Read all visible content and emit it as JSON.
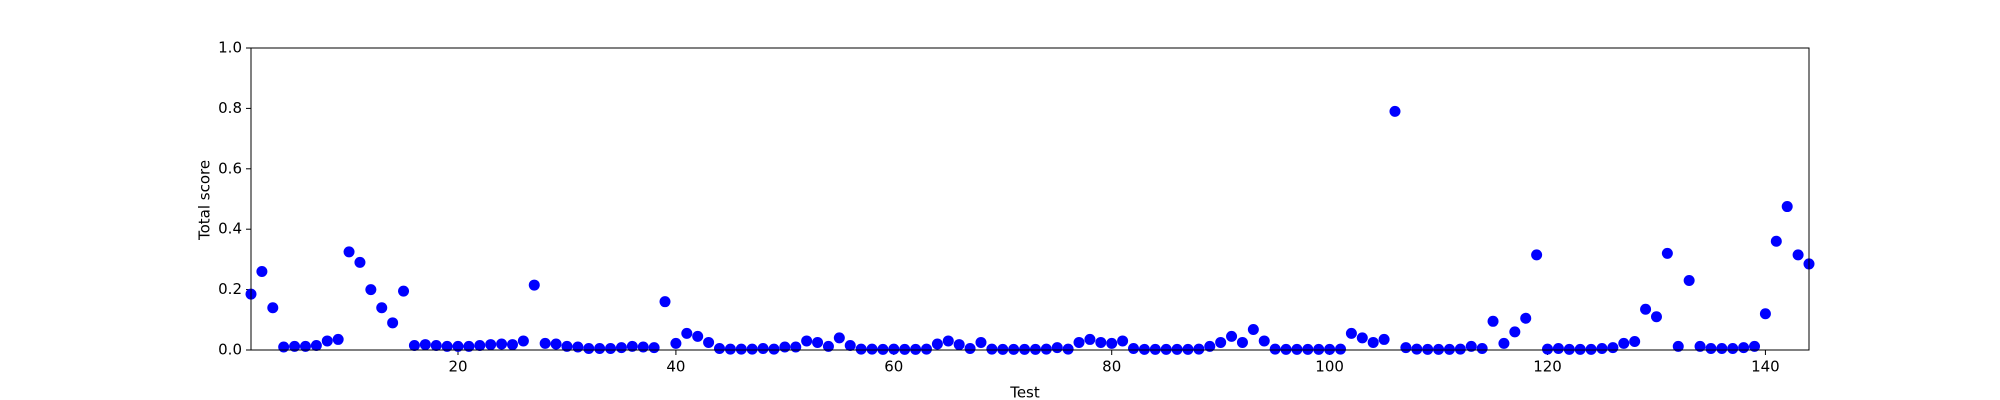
{
  "chart_data": {
    "type": "scatter",
    "xlabel": "Test",
    "ylabel": "Total score",
    "color": "#0000ff",
    "grid": false,
    "x": [
      1,
      2,
      3,
      4,
      5,
      6,
      7,
      8,
      9,
      10,
      11,
      12,
      13,
      14,
      15,
      16,
      17,
      18,
      19,
      20,
      21,
      22,
      23,
      24,
      25,
      26,
      27,
      28,
      29,
      30,
      31,
      32,
      33,
      34,
      35,
      36,
      37,
      38,
      39,
      40,
      41,
      42,
      43,
      44,
      45,
      46,
      47,
      48,
      49,
      50,
      51,
      52,
      53,
      54,
      55,
      56,
      57,
      58,
      59,
      60,
      61,
      62,
      63,
      64,
      65,
      66,
      67,
      68,
      69,
      70,
      71,
      72,
      73,
      74,
      75,
      76,
      77,
      78,
      79,
      80,
      81,
      82,
      83,
      84,
      85,
      86,
      87,
      88,
      89,
      90,
      91,
      92,
      93,
      94,
      95,
      96,
      97,
      98,
      99,
      100,
      101,
      102,
      103,
      104,
      105,
      106,
      107,
      108,
      109,
      110,
      111,
      112,
      113,
      114,
      115,
      116,
      117,
      118,
      119,
      120,
      121,
      122,
      123,
      124,
      125,
      126,
      127,
      128,
      129,
      130,
      131,
      132,
      133,
      134,
      135,
      136,
      137,
      138,
      139,
      140,
      141,
      142,
      143,
      144
    ],
    "values": [
      0.185,
      0.26,
      0.14,
      0.01,
      0.012,
      0.012,
      0.015,
      0.03,
      0.035,
      0.325,
      0.29,
      0.2,
      0.14,
      0.09,
      0.195,
      0.015,
      0.018,
      0.015,
      0.012,
      0.012,
      0.012,
      0.015,
      0.018,
      0.02,
      0.018,
      0.03,
      0.215,
      0.022,
      0.02,
      0.012,
      0.01,
      0.005,
      0.005,
      0.005,
      0.008,
      0.012,
      0.01,
      0.008,
      0.16,
      0.022,
      0.055,
      0.045,
      0.025,
      0.005,
      0.003,
      0.003,
      0.003,
      0.005,
      0.003,
      0.01,
      0.01,
      0.03,
      0.025,
      0.012,
      0.04,
      0.015,
      0.003,
      0.003,
      0.002,
      0.003,
      0.002,
      0.002,
      0.003,
      0.02,
      0.03,
      0.018,
      0.005,
      0.025,
      0.003,
      0.002,
      0.002,
      0.002,
      0.002,
      0.003,
      0.008,
      0.003,
      0.025,
      0.035,
      0.025,
      0.022,
      0.03,
      0.005,
      0.002,
      0.002,
      0.002,
      0.002,
      0.002,
      0.003,
      0.012,
      0.025,
      0.045,
      0.025,
      0.068,
      0.03,
      0.003,
      0.002,
      0.002,
      0.002,
      0.002,
      0.002,
      0.003,
      0.055,
      0.04,
      0.025,
      0.035,
      0.79,
      0.008,
      0.003,
      0.002,
      0.002,
      0.002,
      0.003,
      0.012,
      0.005,
      0.095,
      0.022,
      0.06,
      0.105,
      0.315,
      0.003,
      0.005,
      0.002,
      0.002,
      0.002,
      0.005,
      0.008,
      0.022,
      0.028,
      0.135,
      0.11,
      0.32,
      0.012,
      0.23,
      0.012,
      0.005,
      0.005,
      0.005,
      0.008,
      0.012,
      0.12,
      0.36,
      0.475,
      0.315,
      0.285
    ],
    "xlim": [
      1,
      144
    ],
    "ylim": [
      0,
      1
    ],
    "xticks": [
      20,
      40,
      60,
      80,
      100,
      120,
      140
    ],
    "yticks": [
      {
        "value": 0,
        "label": "0.0"
      },
      {
        "value": 0.2,
        "label": "0.2"
      },
      {
        "value": 0.4,
        "label": "0.4"
      },
      {
        "value": 0.6,
        "label": "0.6"
      },
      {
        "value": 0.8,
        "label": "0.8"
      },
      {
        "value": 1,
        "label": "1.0"
      }
    ]
  }
}
